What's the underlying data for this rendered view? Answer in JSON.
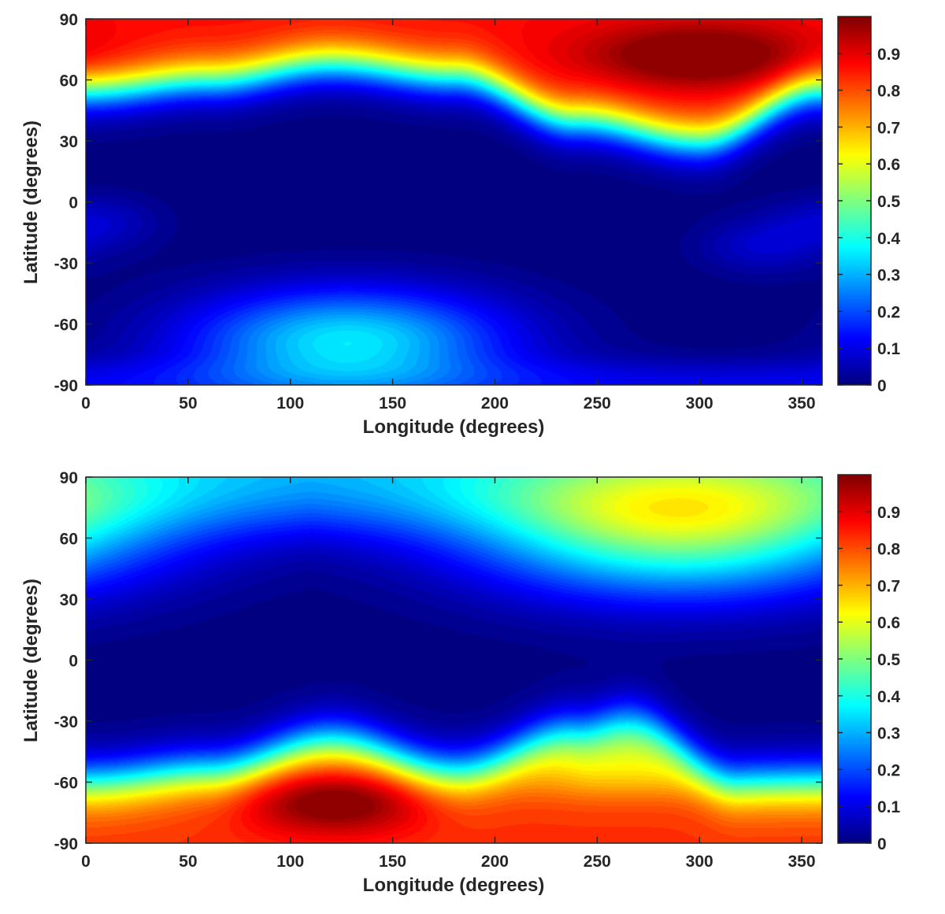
{
  "chart_data": [
    {
      "type": "heatmap",
      "title": "",
      "xlabel": "Longitude (degrees)",
      "ylabel": "Latitude (degrees)",
      "xlim": [
        0,
        360
      ],
      "ylim": [
        -90,
        90
      ],
      "xticks": [
        0,
        50,
        100,
        150,
        200,
        250,
        300,
        350
      ],
      "yticks": [
        90,
        60,
        30,
        0,
        -30,
        -60,
        -90
      ],
      "colorbar": {
        "range": [
          0,
          1
        ],
        "ticks": [
          0.9,
          0.8,
          0.7,
          0.6,
          0.5,
          0.4,
          0.3,
          0.2,
          0.1,
          0
        ],
        "colormap": "jet"
      },
      "features": [
        {
          "feature": "northern high-value band",
          "boundary_latitude_at_longitude": {
            "0": 55,
            "60": 60,
            "120": 68,
            "180": 62,
            "240": 40,
            "300": 30,
            "360": 55
          }
        },
        {
          "feature": "maximum",
          "longitude": 300,
          "latitude": 72,
          "value": 0.98
        },
        {
          "feature": "southern secondary lobe",
          "longitude": 128,
          "latitude": -68,
          "value": 0.36
        },
        {
          "feature": "weak patch",
          "longitude": 5,
          "latitude": -10,
          "value": 0.08
        },
        {
          "feature": "weak patch",
          "longitude": 330,
          "latitude": -22,
          "value": 0.08
        }
      ]
    },
    {
      "type": "heatmap",
      "title": "",
      "xlabel": "Longitude (degrees)",
      "ylabel": "Latitude (degrees)",
      "xlim": [
        0,
        360
      ],
      "ylim": [
        -90,
        90
      ],
      "xticks": [
        0,
        50,
        100,
        150,
        200,
        250,
        300,
        350
      ],
      "yticks": [
        90,
        60,
        30,
        0,
        -30,
        -60,
        -90
      ],
      "colorbar": {
        "range": [
          0,
          1
        ],
        "ticks": [
          0.9,
          0.8,
          0.7,
          0.6,
          0.5,
          0.4,
          0.3,
          0.2,
          0.1,
          0
        ],
        "colormap": "jet"
      },
      "features": [
        {
          "feature": "southern high-value band",
          "boundary_latitude_at_longitude": {
            "0": -60,
            "60": -55,
            "120": -40,
            "180": -55,
            "240": -35,
            "265": -30,
            "320": -60,
            "360": -60
          }
        },
        {
          "feature": "maximum",
          "longitude": 122,
          "latitude": -70,
          "value": 0.98
        },
        {
          "feature": "secondary maximum",
          "longitude": 265,
          "latitude": -50,
          "value": 0.7
        },
        {
          "feature": "northern lobe",
          "longitude": 290,
          "latitude": 65,
          "value": 0.48
        },
        {
          "feature": "northern cap",
          "longitude": 120,
          "latitude": 88,
          "value": 0.32
        }
      ]
    }
  ]
}
